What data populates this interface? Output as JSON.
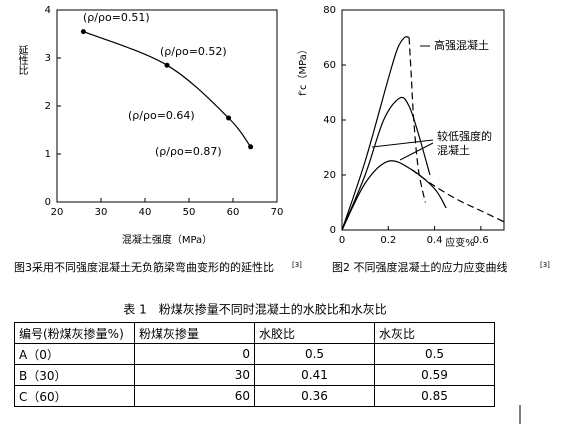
{
  "chart_data": [
    {
      "type": "line",
      "xlabel": "混凝土强度（MPa）",
      "ylabel": "延性比",
      "xlim": [
        20,
        70
      ],
      "xticks": [
        20,
        30,
        40,
        50,
        60,
        70
      ],
      "ylim": [
        0,
        4
      ],
      "yticks": [
        0,
        1,
        2,
        3,
        4
      ],
      "series": [
        {
          "color": "#000000",
          "x": [
            26,
            45,
            59,
            64
          ],
          "values": [
            3.55,
            2.85,
            1.75,
            1.15
          ]
        }
      ],
      "annotations": [
        "(ρ/ρo=0.51)",
        "(ρ/ρo=0.52)",
        "(ρ/ρo=0.64)",
        "(ρ/ρo=0.87)"
      ]
    },
    {
      "type": "line",
      "xlabel": "应变%",
      "ylabel": "f′c（MPa）",
      "xlim": [
        0,
        0.7
      ],
      "xticks": [
        0,
        0.2,
        0.4,
        0.6
      ],
      "ylim": [
        0,
        80
      ],
      "yticks": [
        0,
        20,
        40,
        60,
        80
      ],
      "series": [
        {
          "color": "#000000",
          "dash": false,
          "x": [
            0,
            0.1,
            0.2,
            0.24,
            0.27,
            0.29
          ],
          "values": [
            0,
            25,
            55,
            66,
            70,
            70
          ]
        },
        {
          "color": "#000000",
          "dash": true,
          "x": [
            0.29,
            0.3,
            0.31,
            0.33,
            0.36
          ],
          "values": [
            70,
            55,
            40,
            22,
            10
          ]
        },
        {
          "color": "#000000",
          "dash": false,
          "x": [
            0,
            0.1,
            0.18,
            0.25,
            0.29,
            0.33,
            0.38
          ],
          "values": [
            0,
            20,
            40,
            48,
            45,
            35,
            20
          ]
        },
        {
          "color": "#000000",
          "dash": false,
          "x": [
            0,
            0.1,
            0.2,
            0.3,
            0.4,
            0.45
          ],
          "values": [
            0,
            17,
            25,
            22,
            15,
            8
          ]
        },
        {
          "color": "#000000",
          "dash": true,
          "x": [
            0.3,
            0.4,
            0.5,
            0.6,
            0.7
          ],
          "values": [
            22,
            16,
            11,
            7,
            3
          ]
        }
      ],
      "annotations": [
        "高强混凝土",
        "较低强度的",
        "混凝土"
      ]
    }
  ],
  "captions": [
    {
      "text": "图3采用不同强度混凝土无负筋梁弯曲变形的的延性比",
      "ref": "[3]"
    },
    {
      "text": "图2 不同强度混凝土的应力应变曲线",
      "ref": "[3]"
    }
  ],
  "table": {
    "title": "表 1　粉煤灰掺量不同时混凝土的水胶比和水灰比",
    "rows": [
      [
        "编号(粉煤灰掺量%)",
        "粉煤灰掺量",
        "水胶比",
        "水灰比"
      ],
      [
        "A（0）",
        "0",
        "0.5",
        "0.5"
      ],
      [
        "B（30）",
        "30",
        "0.41",
        "0.59"
      ],
      [
        "C（60）",
        "60",
        "0.36",
        "0.85"
      ]
    ]
  }
}
